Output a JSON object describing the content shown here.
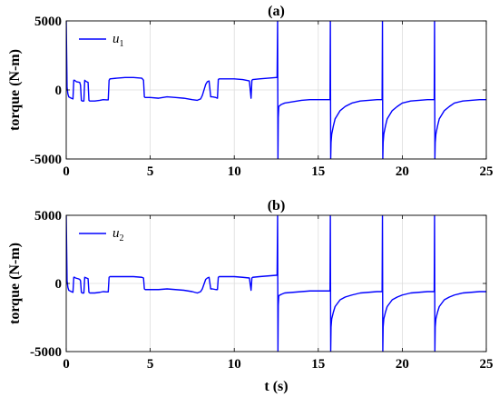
{
  "chart_data": [
    {
      "type": "line",
      "title": "(a)",
      "ylabel": "torque (N-m)",
      "xlabel": "",
      "xlim": [
        0,
        25
      ],
      "ylim": [
        -5000,
        5000
      ],
      "xticks": [
        "0",
        "5",
        "10",
        "15",
        "20",
        "25"
      ],
      "yticks": [
        "5000",
        "0",
        "-5000"
      ],
      "grid": true,
      "legend_position": "top-left",
      "series": [
        {
          "name": "u",
          "name_subscript": "1",
          "color": "#0000ff",
          "x": [
            0,
            0.05,
            0.1,
            0.15,
            0.3,
            0.4,
            0.45,
            0.5,
            0.55,
            0.6,
            0.8,
            0.85,
            0.9,
            0.95,
            1.05,
            1.1,
            1.2,
            1.3,
            1.35,
            1.4,
            1.7,
            2.0,
            2.2,
            2.4,
            2.5,
            2.55,
            2.6,
            3.0,
            3.5,
            4.0,
            4.5,
            4.6,
            4.65,
            4.7,
            5.0,
            5.5,
            6.0,
            6.5,
            7.0,
            7.5,
            7.8,
            8.0,
            8.1,
            8.3,
            8.4,
            8.5,
            8.6,
            8.7,
            8.9,
            9.0,
            9.05,
            9.1,
            9.5,
            10.0,
            10.5,
            10.9,
            11.0,
            11.05,
            11.1,
            11.5,
            12.0,
            12.5,
            12.55,
            12.58,
            12.6,
            12.62,
            12.65,
            12.8,
            13.0,
            13.5,
            14.0,
            14.5,
            15.0,
            15.5,
            15.7,
            15.72,
            15.74,
            15.76,
            15.8,
            15.9,
            16.0,
            16.3,
            16.6,
            17.0,
            17.5,
            18.0,
            18.5,
            18.8,
            18.82,
            18.84,
            18.86,
            18.9,
            19.0,
            19.1,
            19.4,
            19.7,
            20.0,
            20.5,
            21.0,
            21.5,
            21.9,
            21.92,
            21.94,
            21.96,
            22.0,
            22.1,
            22.2,
            22.5,
            22.8,
            23.1,
            23.6,
            24.1,
            24.6,
            25.0
          ],
          "y": [
            5000,
            200,
            -300,
            -500,
            -600,
            -650,
            700,
            700,
            650,
            600,
            550,
            350,
            -750,
            -800,
            -800,
            700,
            600,
            550,
            -750,
            -800,
            -800,
            -750,
            -700,
            -720,
            -720,
            700,
            800,
            850,
            900,
            900,
            850,
            700,
            -500,
            -550,
            -550,
            -600,
            -500,
            -550,
            -600,
            -700,
            -750,
            -650,
            -400,
            400,
            600,
            650,
            -500,
            -500,
            -550,
            -600,
            750,
            800,
            800,
            800,
            750,
            650,
            -600,
            700,
            750,
            800,
            850,
            900,
            900,
            5000,
            -5000,
            -2000,
            -1200,
            -1050,
            -950,
            -850,
            -750,
            -700,
            -700,
            -700,
            -700,
            5000,
            -5000,
            -3800,
            -3200,
            -2600,
            -2100,
            -1500,
            -1200,
            -950,
            -800,
            -750,
            -700,
            -700,
            5000,
            -5000,
            -3800,
            -3200,
            -2600,
            -2100,
            -1500,
            -1200,
            -950,
            -800,
            -750,
            -700,
            -700,
            5000,
            -5000,
            -3800,
            -3200,
            -2600,
            -2100,
            -1500,
            -1200,
            -950,
            -800,
            -750,
            -700,
            -700
          ]
        }
      ]
    },
    {
      "type": "line",
      "title": "(b)",
      "ylabel": "torque (N-m)",
      "xlabel": "t (s)",
      "xlim": [
        0,
        25
      ],
      "ylim": [
        -5000,
        5000
      ],
      "xticks": [
        "0",
        "5",
        "10",
        "15",
        "20",
        "25"
      ],
      "yticks": [
        "5000",
        "0",
        "-5000"
      ],
      "grid": true,
      "legend_position": "top-left",
      "series": [
        {
          "name": "u",
          "name_subscript": "2",
          "color": "#0000ff",
          "x": [
            0,
            0.05,
            0.1,
            0.15,
            0.3,
            0.4,
            0.45,
            0.5,
            0.55,
            0.7,
            0.8,
            0.85,
            0.9,
            0.95,
            1.05,
            1.1,
            1.2,
            1.3,
            1.35,
            1.4,
            1.7,
            2.0,
            2.2,
            2.4,
            2.5,
            2.55,
            2.6,
            3.0,
            3.5,
            4.0,
            4.5,
            4.6,
            4.65,
            4.7,
            5.0,
            5.5,
            6.0,
            6.5,
            7.0,
            7.5,
            7.8,
            8.0,
            8.1,
            8.3,
            8.4,
            8.5,
            8.6,
            8.7,
            8.9,
            9.0,
            9.05,
            9.1,
            9.5,
            10.0,
            10.5,
            10.9,
            11.0,
            11.05,
            11.1,
            11.5,
            12.0,
            12.5,
            12.55,
            12.58,
            12.6,
            12.62,
            12.65,
            12.8,
            13.0,
            13.5,
            14.0,
            14.5,
            15.0,
            15.5,
            15.7,
            15.72,
            15.74,
            15.76,
            15.8,
            15.9,
            16.0,
            16.3,
            16.6,
            17.0,
            17.5,
            18.0,
            18.5,
            18.8,
            18.82,
            18.84,
            18.86,
            18.9,
            19.0,
            19.1,
            19.4,
            19.7,
            20.0,
            20.5,
            21.0,
            21.5,
            21.9,
            21.92,
            21.94,
            21.96,
            22.0,
            22.1,
            22.2,
            22.5,
            22.8,
            23.1,
            23.6,
            24.1,
            24.6,
            25.0
          ],
          "y": [
            5000,
            200,
            -300,
            -500,
            -600,
            -650,
            450,
            450,
            400,
            350,
            300,
            200,
            -650,
            -700,
            -700,
            450,
            400,
            350,
            -650,
            -700,
            -700,
            -650,
            -600,
            -620,
            -620,
            450,
            500,
            500,
            500,
            500,
            450,
            400,
            -400,
            -450,
            -450,
            -450,
            -400,
            -450,
            -500,
            -600,
            -700,
            -600,
            -400,
            300,
            400,
            450,
            -400,
            -400,
            -450,
            -450,
            450,
            500,
            500,
            500,
            450,
            400,
            -500,
            400,
            450,
            500,
            550,
            600,
            600,
            5000,
            -5000,
            -1600,
            -900,
            -800,
            -700,
            -650,
            -600,
            -550,
            -550,
            -550,
            -550,
            5000,
            -5000,
            -3200,
            -2600,
            -2100,
            -1700,
            -1200,
            -1000,
            -850,
            -700,
            -650,
            -600,
            -600,
            5000,
            -5000,
            -3200,
            -2600,
            -2100,
            -1700,
            -1200,
            -1000,
            -850,
            -700,
            -650,
            -600,
            -600,
            5000,
            -5000,
            -3200,
            -2600,
            -2100,
            -1700,
            -1200,
            -1000,
            -850,
            -700,
            -650,
            -600,
            -600
          ]
        }
      ]
    }
  ]
}
